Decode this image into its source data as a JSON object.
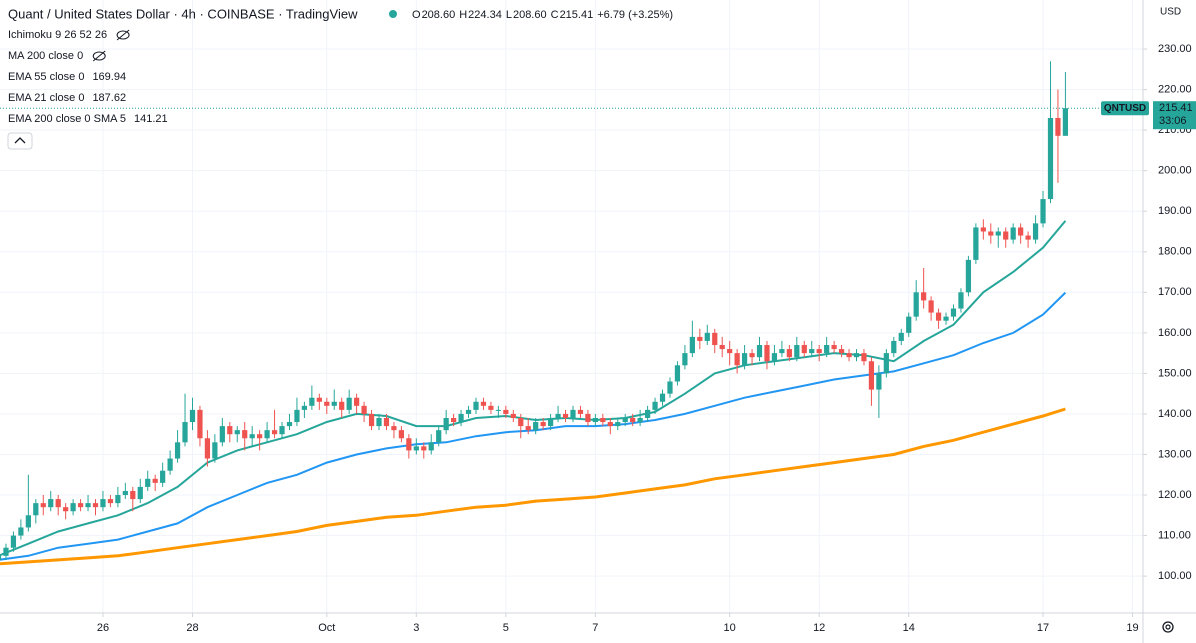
{
  "chart_data": {
    "type": "candlestick",
    "title": "Quant / United States Dollar · 4h · COINBASE · TradingView",
    "ohlc_legend": [
      {
        "key": "O",
        "value": "208.60"
      },
      {
        "key": "H",
        "value": "224.34"
      },
      {
        "key": "L",
        "value": "208.60"
      },
      {
        "key": "C",
        "value": "215.41"
      }
    ],
    "change": "+6.79 (+3.25%)",
    "hidden_indicators": [
      "Ichimoku 9 26 52 26",
      "MA 200 close 0"
    ],
    "symbol": "QNTUSD",
    "countdown": "33:06",
    "currency": "USD",
    "up_color": "#26a69a",
    "down_color": "#ef5350",
    "grid": true,
    "xlim": [
      0.2,
      153.4
    ],
    "xticks": [
      {
        "value": 14,
        "label": "26"
      },
      {
        "value": 26,
        "label": "28"
      },
      {
        "value": 44,
        "label": "Oct"
      },
      {
        "value": 56,
        "label": "3"
      },
      {
        "value": 68,
        "label": "5"
      },
      {
        "value": 80,
        "label": "7"
      },
      {
        "value": 98,
        "label": "10"
      },
      {
        "value": 110,
        "label": "12"
      },
      {
        "value": 122,
        "label": "14"
      },
      {
        "value": 140,
        "label": "17"
      },
      {
        "value": 152,
        "label": "19"
      }
    ],
    "ylim": [
      90.9,
      242.1
    ],
    "yticks": [
      {
        "value": 100,
        "label": "100.00"
      },
      {
        "value": 110,
        "label": "110.00"
      },
      {
        "value": 120,
        "label": "120.00"
      },
      {
        "value": 130,
        "label": "130.00"
      },
      {
        "value": 140,
        "label": "140.00"
      },
      {
        "value": 150,
        "label": "150.00"
      },
      {
        "value": 160,
        "label": "160.00"
      },
      {
        "value": 170,
        "label": "170.00"
      },
      {
        "value": 180,
        "label": "180.00"
      },
      {
        "value": 190,
        "label": "190.00"
      },
      {
        "value": 200,
        "label": "200.00"
      },
      {
        "value": 210,
        "label": "210.00"
      },
      {
        "value": 220,
        "label": "220.00"
      },
      {
        "value": 230,
        "label": "230.00"
      }
    ],
    "candles": [
      [
        104,
        107,
        103,
        105
      ],
      [
        105,
        108,
        104,
        107
      ],
      [
        107,
        111,
        106,
        110
      ],
      [
        110,
        114,
        109,
        112
      ],
      [
        112,
        125,
        111,
        115
      ],
      [
        115,
        119,
        113,
        118
      ],
      [
        118,
        120,
        115,
        117
      ],
      [
        117,
        121,
        116,
        119
      ],
      [
        119,
        120,
        115,
        117
      ],
      [
        117,
        118,
        114,
        116
      ],
      [
        116,
        119,
        115,
        118
      ],
      [
        118,
        119,
        116,
        117
      ],
      [
        117,
        120,
        116,
        118
      ],
      [
        118,
        119,
        115,
        117
      ],
      [
        117,
        121,
        116,
        119
      ],
      [
        119,
        120,
        117,
        118
      ],
      [
        118,
        122,
        117,
        120
      ],
      [
        120,
        123,
        119,
        121
      ],
      [
        121,
        122,
        116,
        119
      ],
      [
        119,
        124,
        118,
        122
      ],
      [
        122,
        126,
        121,
        124
      ],
      [
        124,
        125,
        121,
        123
      ],
      [
        123,
        128,
        122,
        126
      ],
      [
        126,
        131,
        125,
        129
      ],
      [
        129,
        136,
        128,
        133
      ],
      [
        133,
        145,
        132,
        138
      ],
      [
        138,
        144,
        136,
        141
      ],
      [
        141,
        142,
        132,
        134
      ],
      [
        134,
        136,
        127,
        129
      ],
      [
        129,
        135,
        128,
        133
      ],
      [
        133,
        139,
        132,
        137
      ],
      [
        137,
        138,
        133,
        135
      ],
      [
        135,
        137,
        133,
        136
      ],
      [
        136,
        138,
        131,
        134
      ],
      [
        134,
        137,
        132,
        135
      ],
      [
        135,
        136,
        131,
        134
      ],
      [
        134,
        138,
        133,
        136
      ],
      [
        136,
        141,
        134,
        135
      ],
      [
        135,
        138,
        134,
        137
      ],
      [
        137,
        140,
        136,
        138
      ],
      [
        138,
        144,
        137,
        141
      ],
      [
        141,
        143,
        139,
        142
      ],
      [
        142,
        147,
        141,
        144
      ],
      [
        144,
        145,
        141,
        143
      ],
      [
        143,
        144,
        140,
        142
      ],
      [
        142,
        146,
        141,
        143
      ],
      [
        143,
        144,
        139,
        141
      ],
      [
        141,
        146,
        140,
        144
      ],
      [
        144,
        145,
        140,
        142
      ],
      [
        142,
        143,
        138,
        140
      ],
      [
        140,
        141,
        136,
        137
      ],
      [
        137,
        140,
        136,
        139
      ],
      [
        139,
        140,
        136,
        137
      ],
      [
        137,
        138,
        134,
        136
      ],
      [
        136,
        137,
        133,
        134
      ],
      [
        134,
        135,
        129,
        131
      ],
      [
        131,
        134,
        130,
        132
      ],
      [
        132,
        133,
        129,
        131
      ],
      [
        131,
        135,
        130,
        133
      ],
      [
        133,
        137,
        132,
        136
      ],
      [
        136,
        141,
        135,
        139
      ],
      [
        139,
        140,
        137,
        138
      ],
      [
        138,
        141,
        137,
        140
      ],
      [
        140,
        142,
        139,
        141
      ],
      [
        141,
        144,
        140,
        143
      ],
      [
        143,
        144,
        141,
        142
      ],
      [
        142,
        143,
        140,
        141
      ],
      [
        141,
        142,
        139,
        141
      ],
      [
        141,
        142,
        139,
        140
      ],
      [
        140,
        141,
        138,
        139
      ],
      [
        139,
        140,
        134,
        137
      ],
      [
        137,
        139,
        135,
        136
      ],
      [
        136,
        139,
        135,
        138
      ],
      [
        138,
        139,
        136,
        137
      ],
      [
        137,
        140,
        136,
        139
      ],
      [
        139,
        142,
        138,
        140
      ],
      [
        140,
        141,
        138,
        139
      ],
      [
        139,
        142,
        138,
        141
      ],
      [
        141,
        142,
        139,
        140
      ],
      [
        140,
        141,
        137,
        138
      ],
      [
        138,
        140,
        137,
        139
      ],
      [
        139,
        140,
        137,
        138
      ],
      [
        138,
        139,
        135,
        137
      ],
      [
        137,
        139,
        136,
        138
      ],
      [
        138,
        140,
        137,
        139
      ],
      [
        139,
        140,
        137,
        138
      ],
      [
        138,
        141,
        137,
        139
      ],
      [
        139,
        142,
        138,
        141
      ],
      [
        141,
        144,
        140,
        143
      ],
      [
        143,
        146,
        142,
        145
      ],
      [
        145,
        149,
        144,
        148
      ],
      [
        148,
        153,
        147,
        152
      ],
      [
        152,
        157,
        151,
        155
      ],
      [
        155,
        163,
        154,
        159
      ],
      [
        159,
        161,
        156,
        158
      ],
      [
        158,
        162,
        157,
        160
      ],
      [
        160,
        161,
        155,
        157
      ],
      [
        157,
        159,
        154,
        156
      ],
      [
        156,
        158,
        152,
        155
      ],
      [
        155,
        156,
        150,
        152
      ],
      [
        152,
        157,
        151,
        155
      ],
      [
        155,
        156,
        152,
        154
      ],
      [
        154,
        159,
        153,
        157
      ],
      [
        157,
        158,
        151,
        153
      ],
      [
        153,
        157,
        152,
        155
      ],
      [
        155,
        158,
        154,
        156
      ],
      [
        156,
        157,
        153,
        154
      ],
      [
        154,
        159,
        153,
        157
      ],
      [
        157,
        158,
        154,
        155
      ],
      [
        155,
        158,
        154,
        156
      ],
      [
        156,
        157,
        153,
        155
      ],
      [
        155,
        159,
        154,
        157
      ],
      [
        157,
        158,
        155,
        156
      ],
      [
        156,
        157,
        154,
        155
      ],
      [
        155,
        156,
        153,
        154
      ],
      [
        154,
        156,
        153,
        155
      ],
      [
        155,
        156,
        152,
        153
      ],
      [
        153,
        154,
        142,
        146
      ],
      [
        146,
        152,
        139,
        150
      ],
      [
        150,
        156,
        149,
        155
      ],
      [
        155,
        159,
        154,
        158
      ],
      [
        158,
        161,
        157,
        160
      ],
      [
        160,
        165,
        159,
        164
      ],
      [
        164,
        173,
        163,
        170
      ],
      [
        170,
        176,
        166,
        168
      ],
      [
        168,
        169,
        163,
        165
      ],
      [
        165,
        166,
        161,
        163
      ],
      [
        163,
        165,
        162,
        164
      ],
      [
        164,
        167,
        163,
        166
      ],
      [
        166,
        171,
        165,
        170
      ],
      [
        170,
        179,
        169,
        178
      ],
      [
        178,
        187,
        177,
        186
      ],
      [
        186,
        188,
        183,
        185
      ],
      [
        185,
        187,
        182,
        184
      ],
      [
        184,
        186,
        181,
        185
      ],
      [
        185,
        186,
        181,
        183
      ],
      [
        183,
        187,
        182,
        186
      ],
      [
        186,
        187,
        182,
        184
      ],
      [
        184,
        185,
        181,
        183
      ],
      [
        183,
        189,
        182,
        187
      ],
      [
        187,
        195,
        186,
        193
      ],
      [
        193,
        227,
        192,
        213
      ],
      [
        213,
        220,
        197,
        208.6
      ],
      [
        208.6,
        224.34,
        208.6,
        215.41
      ]
    ],
    "series": [
      {
        "name": "EMA 55 close 0",
        "color": "#2196f3",
        "x": [
          0,
          4,
          8,
          12,
          16,
          20,
          24,
          28,
          32,
          36,
          40,
          44,
          48,
          52,
          56,
          60,
          64,
          68,
          72,
          76,
          80,
          84,
          88,
          92,
          96,
          100,
          104,
          108,
          112,
          116,
          120,
          124,
          128,
          132,
          136,
          140,
          143
        ],
        "values": [
          104,
          105,
          107,
          108,
          109,
          111,
          113,
          117,
          120,
          123,
          125,
          128,
          130,
          131.5,
          132.5,
          133,
          134.5,
          135.5,
          136,
          137,
          137,
          137.5,
          138.5,
          140,
          142,
          144,
          145.5,
          147,
          148.5,
          149.5,
          150.5,
          152.5,
          154.5,
          157.5,
          160,
          164.5,
          169.94
        ]
      },
      {
        "name": "EMA 21 close 0",
        "color": "#26a69a",
        "x": [
          0,
          4,
          8,
          12,
          16,
          20,
          24,
          28,
          32,
          36,
          40,
          44,
          48,
          52,
          56,
          60,
          64,
          68,
          72,
          76,
          80,
          84,
          88,
          92,
          96,
          100,
          104,
          108,
          112,
          116,
          120,
          124,
          128,
          132,
          136,
          140,
          143
        ],
        "values": [
          105,
          108,
          111,
          113,
          115,
          118,
          122,
          128,
          131,
          133,
          135,
          138,
          140,
          139.5,
          137,
          137,
          139,
          139.5,
          138.5,
          139,
          138.5,
          139,
          140.5,
          145,
          150,
          152,
          153,
          154,
          155,
          154.5,
          153,
          158,
          162,
          170,
          175,
          181,
          187.62
        ]
      },
      {
        "name": "EMA 200 close 0 SMA 5",
        "color": "#ff9800",
        "x": [
          0,
          4,
          8,
          12,
          16,
          20,
          24,
          28,
          32,
          36,
          40,
          44,
          48,
          52,
          56,
          60,
          64,
          68,
          72,
          76,
          80,
          84,
          88,
          92,
          96,
          100,
          104,
          108,
          112,
          116,
          120,
          124,
          128,
          132,
          136,
          140,
          143
        ],
        "values": [
          103,
          103.5,
          104,
          104.5,
          105,
          106,
          107,
          108,
          109,
          110,
          111,
          112.5,
          113.5,
          114.5,
          115,
          116,
          117,
          117.5,
          118.5,
          119,
          119.5,
          120.5,
          121.5,
          122.5,
          124,
          125,
          126,
          127,
          128,
          129,
          130,
          132,
          133.5,
          135.5,
          137.5,
          139.5,
          141.21
        ]
      }
    ]
  }
}
